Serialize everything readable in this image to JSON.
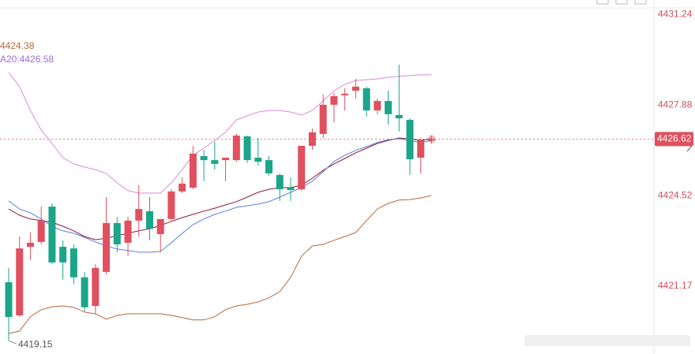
{
  "chart_data": {
    "type": "candlestick",
    "up_color": "#e0505f",
    "down_color": "#1ba589",
    "open": [
      4421.32,
      4420.09,
      4422.63,
      4422.81,
      4424.12,
      4422.63,
      4422.57,
      4421.5,
      4420.44,
      4421.7,
      4423.51,
      4422.78,
      4423.6,
      4423.95,
      4423.1,
      4423.66,
      4424.68,
      4424.82,
      4425.99,
      4425.84,
      4425.84,
      4425.84,
      4426.72,
      4425.93,
      4425.84,
      4425.29,
      4424.82,
      4424.76,
      4426.37,
      4426.81,
      4427.89,
      4428.24,
      4428.41,
      4428.5,
      4427.68,
      4428.03,
      4427.51,
      4427.33,
      4425.93,
      4426.57
    ],
    "high": [
      4421.85,
      4423.01,
      4423.16,
      4424.12,
      4424.24,
      4422.87,
      4422.72,
      4421.7,
      4421.99,
      4424.47,
      4423.74,
      4423.74,
      4424.91,
      4424.47,
      4423.66,
      4424.76,
      4425.2,
      4426.37,
      4426.22,
      4426.52,
      4425.93,
      4426.81,
      4426.75,
      4426.66,
      4425.99,
      4425.35,
      4425.2,
      4426.37,
      4427.01,
      4428.27,
      4428.33,
      4428.5,
      4428.85,
      4428.56,
      4428.12,
      4428.41,
      4429.38,
      4427.39,
      4426.66,
      4426.75
    ],
    "low": [
      4419.15,
      4420.03,
      4422.14,
      4422.72,
      4421.99,
      4421.41,
      4421.26,
      4420.24,
      4420.15,
      4421.61,
      4422.43,
      4422.28,
      4423.01,
      4422.87,
      4422.43,
      4423.6,
      4424.62,
      4424.76,
      4425.06,
      4425.49,
      4425.06,
      4425.78,
      4425.73,
      4425.64,
      4425.26,
      4424.33,
      4424.33,
      4424.71,
      4426.22,
      4426.66,
      4427.24,
      4427.68,
      4428.12,
      4427.45,
      4427.54,
      4427.16,
      4426.9,
      4425.29,
      4425.35,
      4426.45
    ],
    "close": [
      4420.03,
      4422.57,
      4422.78,
      4423.6,
      4422.05,
      4422.05,
      4421.5,
      4420.39,
      4421.85,
      4423.51,
      4422.72,
      4423.6,
      4424.03,
      4423.3,
      4423.66,
      4424.68,
      4424.97,
      4426.08,
      4425.84,
      4425.7,
      4425.93,
      4426.75,
      4425.84,
      4425.78,
      4425.35,
      4424.76,
      4424.73,
      4426.37,
      4426.87,
      4427.89,
      4428.21,
      4428.3,
      4428.56,
      4427.68,
      4428.03,
      4427.54,
      4427.39,
      4425.87,
      4426.57,
      4426.62
    ],
    "lines": [
      {
        "color": "#d98cdc",
        "values": [
          4429.08,
          4428.56,
          4427.68,
          4426.95,
          4426.46,
          4425.93,
          4425.7,
          4425.58,
          4425.49,
          4425.35,
          4425.0,
          4424.71,
          4424.62,
          4424.62,
          4424.62,
          4425.0,
          4425.49,
          4426.02,
          4426.28,
          4426.57,
          4426.87,
          4427.33,
          4427.48,
          4427.62,
          4427.68,
          4427.68,
          4427.62,
          4427.51,
          4427.68,
          4428.03,
          4428.41,
          4428.65,
          4428.79,
          4428.82,
          4428.85,
          4428.91,
          4428.94,
          4428.97,
          4429.0,
          4429.0
        ]
      },
      {
        "color": "#b56a3c",
        "values": [
          4419.42,
          4419.51,
          4420.04,
          4420.3,
          4420.41,
          4420.44,
          4420.39,
          4420.21,
          4420.15,
          4419.95,
          4420.09,
          4420.15,
          4420.15,
          4420.15,
          4420.15,
          4420.09,
          4420.01,
          4419.92,
          4419.92,
          4420.04,
          4420.3,
          4420.44,
          4420.5,
          4420.59,
          4420.74,
          4420.97,
          4421.5,
          4422.28,
          4422.66,
          4422.72,
          4422.87,
          4423.01,
          4423.16,
          4423.6,
          4424.03,
          4424.24,
          4424.36,
          4424.38,
          4424.44,
          4424.53
        ]
      },
      {
        "color": "#8b1a3a",
        "values": [
          4424.03,
          4423.8,
          4423.66,
          4423.6,
          4423.54,
          4423.39,
          4423.22,
          4423.01,
          4422.89,
          4422.95,
          4423.04,
          4423.13,
          4423.22,
          4423.3,
          4423.42,
          4423.57,
          4423.71,
          4423.83,
          4423.95,
          4424.06,
          4424.18,
          4424.3,
          4424.47,
          4424.65,
          4424.76,
          4424.82,
          4424.82,
          4424.91,
          4425.17,
          4425.46,
          4425.7,
          4425.9,
          4426.11,
          4426.28,
          4426.46,
          4426.57,
          4426.66,
          4426.63,
          4426.57,
          4426.63
        ]
      },
      {
        "color": "#5b7fdc",
        "values": [
          4424.33,
          4424.03,
          4423.89,
          4423.66,
          4423.39,
          4423.22,
          4423.13,
          4422.98,
          4422.81,
          4422.66,
          4422.55,
          4422.49,
          4422.43,
          4422.43,
          4422.46,
          4422.78,
          4423.13,
          4423.45,
          4423.66,
          4423.83,
          4423.95,
          4424.09,
          4424.15,
          4424.21,
          4424.3,
          4424.47,
          4424.65,
          4424.82,
          4425.06,
          4425.41,
          4425.79,
          4426.02,
          4426.2,
          4426.34,
          4426.49,
          4426.6,
          4426.63,
          4426.57,
          4426.49,
          4426.57
        ]
      }
    ],
    "legend_texts": [
      {
        "text": "4424.38",
        "color": "#b56a3c"
      },
      {
        "text": "A20:4426.58",
        "color": "#9b6fd6"
      }
    ],
    "ylim": [
      4418.66,
      4431.77
    ],
    "yticks": [
      4431.24,
      4427.88,
      4424.52,
      4421.17
    ],
    "last_price": 4426.62,
    "last_price_color": "#e0505f",
    "min_marker": 4419.15,
    "grid": false
  }
}
